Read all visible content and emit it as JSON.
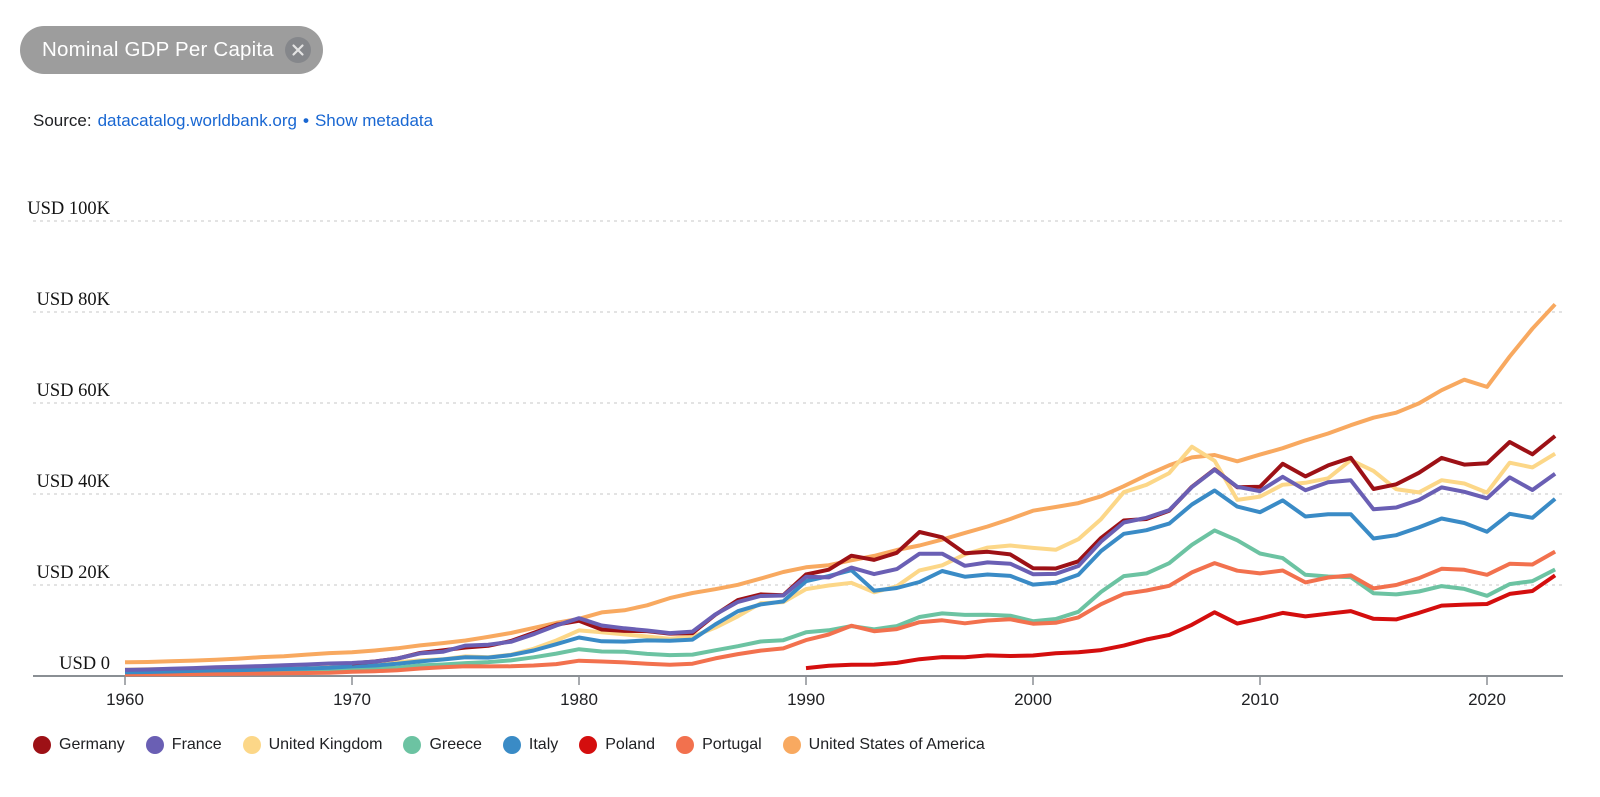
{
  "filter_chip": {
    "label": "Nominal GDP Per Capita",
    "close_icon": "close"
  },
  "source_line": {
    "prefix": "Source:",
    "source_link": "datacatalog.worldbank.org",
    "separator": "•",
    "metadata_link": "Show metadata"
  },
  "colors": {
    "link_blue": "#1967d2",
    "chip_bg": "#9d9d9d",
    "chip_close_bg": "#85878b",
    "chip_text": "#ffffff",
    "axis": "#8a8f94",
    "grid": "#d2d2d2",
    "text_dark": "#202124"
  },
  "chart_data": {
    "type": "line",
    "title": "Nominal GDP Per Capita",
    "unit": "USD",
    "xlabel": "",
    "ylabel": "",
    "x_range": [
      1960,
      2023
    ],
    "ylim": [
      0,
      110000
    ],
    "grid": "horizontal-dashed",
    "legend_position": "bottom",
    "x_ticks": [
      1960,
      1970,
      1980,
      1990,
      2000,
      2010,
      2020
    ],
    "y_ticks": [
      {
        "value": 100000,
        "label": "USD 100K"
      },
      {
        "value": 80000,
        "label": "USD 80K"
      },
      {
        "value": 60000,
        "label": "USD 60K"
      },
      {
        "value": 40000,
        "label": "USD 40K"
      },
      {
        "value": 20000,
        "label": "USD 20K"
      },
      {
        "value": 0,
        "label": "USD 0"
      }
    ],
    "draw_order": [
      "United States of America",
      "United Kingdom",
      "Greece",
      "Portugal",
      "Poland",
      "Italy",
      "Germany",
      "France"
    ],
    "series": [
      {
        "name": "Germany",
        "color": "#9d1116",
        "start_year": 1970,
        "values": [
          2761,
          3193,
          3814,
          5058,
          5657,
          6263,
          6634,
          7682,
          9483,
          11278,
          12138,
          10210,
          9909,
          9864,
          9313,
          9430,
          13460,
          16676,
          17931,
          17764,
          22304,
          23358,
          26438,
          25523,
          27076,
          31658,
          30485,
          26963,
          27289,
          26726,
          23695,
          23635,
          25205,
          30360,
          34166,
          34507,
          36323,
          41587,
          45427,
          41486,
          41572,
          46645,
          43858,
          46286,
          47960,
          41103,
          42136,
          44653,
          47939,
          46468,
          46749,
          51426,
          48718,
          52746
        ]
      },
      {
        "name": "France",
        "color": "#6a5fb4",
        "start_year": 1960,
        "values": [
          1334,
          1428,
          1575,
          1735,
          1912,
          2040,
          2186,
          2341,
          2537,
          2752,
          2853,
          3162,
          3855,
          4969,
          5317,
          6691,
          6873,
          7519,
          9191,
          11108,
          12713,
          11104,
          10493,
          9993,
          9420,
          9765,
          13525,
          16280,
          17577,
          17694,
          21794,
          21675,
          23814,
          22391,
          23497,
          26890,
          26871,
          24229,
          24974,
          24673,
          22364,
          22434,
          24177,
          29568,
          33741,
          34760,
          36444,
          41508,
          45334,
          41575,
          40638,
          43790,
          40838,
          42592,
          43011,
          36638,
          37037,
          38685,
          41461,
          40494,
          39055,
          43659,
          40886,
          44461
        ]
      },
      {
        "name": "United Kingdom",
        "color": "#fcd788",
        "start_year": 1960,
        "values": [
          1397,
          1472,
          1525,
          1613,
          1748,
          1874,
          1987,
          2059,
          1952,
          2101,
          2348,
          2650,
          3030,
          3426,
          3666,
          4300,
          4138,
          4681,
          5977,
          7805,
          10032,
          9599,
          9146,
          8692,
          8179,
          8652,
          10611,
          13119,
          15987,
          16239,
          19095,
          19900,
          20487,
          18389,
          19709,
          23206,
          24333,
          26736,
          28214,
          28671,
          28150,
          27745,
          30057,
          34480,
          40390,
          42030,
          44600,
          50397,
          47287,
          38713,
          39436,
          42039,
          42463,
          43449,
          47448,
          45071,
          41064,
          40361,
          43043,
          42300,
          40318,
          46870,
          45851,
          48867
        ]
      },
      {
        "name": "Greece",
        "color": "#6cc3a2",
        "start_year": 1960,
        "values": [
          533,
          590,
          618,
          687,
          765,
          854,
          943,
          1017,
          1108,
          1245,
          1496,
          1630,
          1828,
          2340,
          2536,
          2840,
          3059,
          3433,
          4112,
          4916,
          5894,
          5381,
          5344,
          4852,
          4593,
          4711,
          5655,
          6550,
          7583,
          7864,
          9600,
          10044,
          10957,
          10269,
          10959,
          12960,
          13760,
          13430,
          13470,
          13245,
          12043,
          12538,
          14110,
          18477,
          21955,
          22553,
          24801,
          28827,
          31997,
          29829,
          26917,
          25916,
          22243,
          21875,
          21726,
          18167,
          17930,
          18582,
          19757,
          19144,
          17617,
          20193,
          20867,
          23401
        ]
      },
      {
        "name": "Italy",
        "color": "#3a8bc6",
        "start_year": 1960,
        "values": [
          804,
          887,
          990,
          1126,
          1223,
          1304,
          1402,
          1533,
          1651,
          1813,
          2107,
          2306,
          2671,
          3205,
          3621,
          4107,
          4033,
          4604,
          5610,
          6990,
          8457,
          7623,
          7557,
          7833,
          7739,
          7991,
          11315,
          14235,
          15744,
          16387,
          20826,
          21957,
          23243,
          18739,
          19338,
          20664,
          23082,
          21829,
          22318,
          21997,
          20088,
          20483,
          22270,
          27467,
          31260,
          32043,
          33502,
          37700,
          40778,
          37227,
          36001,
          38599,
          35054,
          35550,
          35564,
          30230,
          30939,
          32649,
          34615,
          33628,
          31714,
          35657,
          34776,
          38926
        ]
      },
      {
        "name": "Poland",
        "color": "#d40e0e",
        "start_year": 1990,
        "values": [
          1731,
          2235,
          2459,
          2497,
          2874,
          3687,
          4147,
          4115,
          4518,
          4398,
          4501,
          4991,
          5207,
          5699,
          6690,
          8022,
          9035,
          11254,
          14001,
          11527,
          12613,
          13879,
          13097,
          13697,
          14271,
          12578,
          12447,
          13864,
          15468,
          15694,
          15816,
          18050,
          18688,
          22113
        ]
      },
      {
        "name": "Portugal",
        "color": "#f2714e",
        "start_year": 1960,
        "values": [
          361,
          382,
          401,
          426,
          459,
          504,
          546,
          594,
          653,
          712,
          935,
          1050,
          1255,
          1657,
          1937,
          2128,
          2109,
          2122,
          2297,
          2608,
          3369,
          3192,
          2994,
          2676,
          2463,
          2705,
          3862,
          4823,
          5582,
          6071,
          7885,
          9114,
          11057,
          9841,
          10299,
          11830,
          12234,
          11584,
          12204,
          12465,
          11502,
          11700,
          12890,
          15773,
          18039,
          18785,
          19821,
          22780,
          24815,
          23150,
          22540,
          23196,
          20577,
          21653,
          22108,
          19250,
          19992,
          21490,
          23563,
          23333,
          22242,
          24651,
          24515,
          27331
        ]
      },
      {
        "name": "United States of America",
        "color": "#f8a960",
        "start_year": 1960,
        "values": [
          3007,
          3067,
          3244,
          3375,
          3574,
          3828,
          4146,
          4336,
          4696,
          5032,
          5234,
          5609,
          6094,
          6726,
          7226,
          7801,
          8592,
          9453,
          10565,
          11674,
          12575,
          13976,
          14434,
          15544,
          17121,
          18237,
          19071,
          20039,
          21417,
          22857,
          23889,
          24342,
          25419,
          26387,
          27695,
          28691,
          29968,
          31459,
          32854,
          34515,
          36330,
          37134,
          37998,
          39490,
          41725,
          44123,
          46302,
          48050,
          48570,
          47195,
          48651,
          50066,
          51784,
          53291,
          55124,
          56763,
          57867,
          59908,
          62823,
          65120,
          63528,
          70219,
          76330,
          81695
        ]
      }
    ]
  }
}
